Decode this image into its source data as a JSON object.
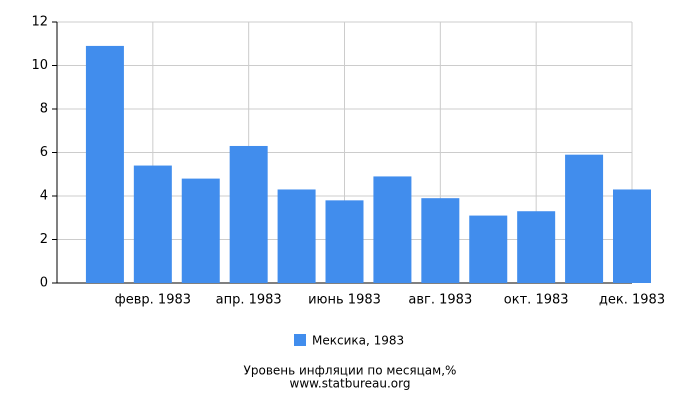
{
  "chart_data": {
    "type": "bar",
    "title": "Уровень инфляции по месяцам,%",
    "source": "www.statbureau.org",
    "categories": [
      null,
      "февр. 1983",
      null,
      "апр. 1983",
      null,
      "июнь 1983",
      null,
      "авг. 1983",
      null,
      "окт. 1983",
      null,
      "дек. 1983"
    ],
    "series": [
      {
        "name": "Мексика, 1983",
        "color": "#418ded",
        "values": [
          10.9,
          5.4,
          4.8,
          6.3,
          4.3,
          3.8,
          4.9,
          3.9,
          3.1,
          3.3,
          5.9,
          4.3
        ]
      }
    ],
    "ylim": [
      0,
      12
    ],
    "yticks": [
      0,
      2,
      4,
      6,
      8,
      10,
      12
    ],
    "grid": true
  }
}
